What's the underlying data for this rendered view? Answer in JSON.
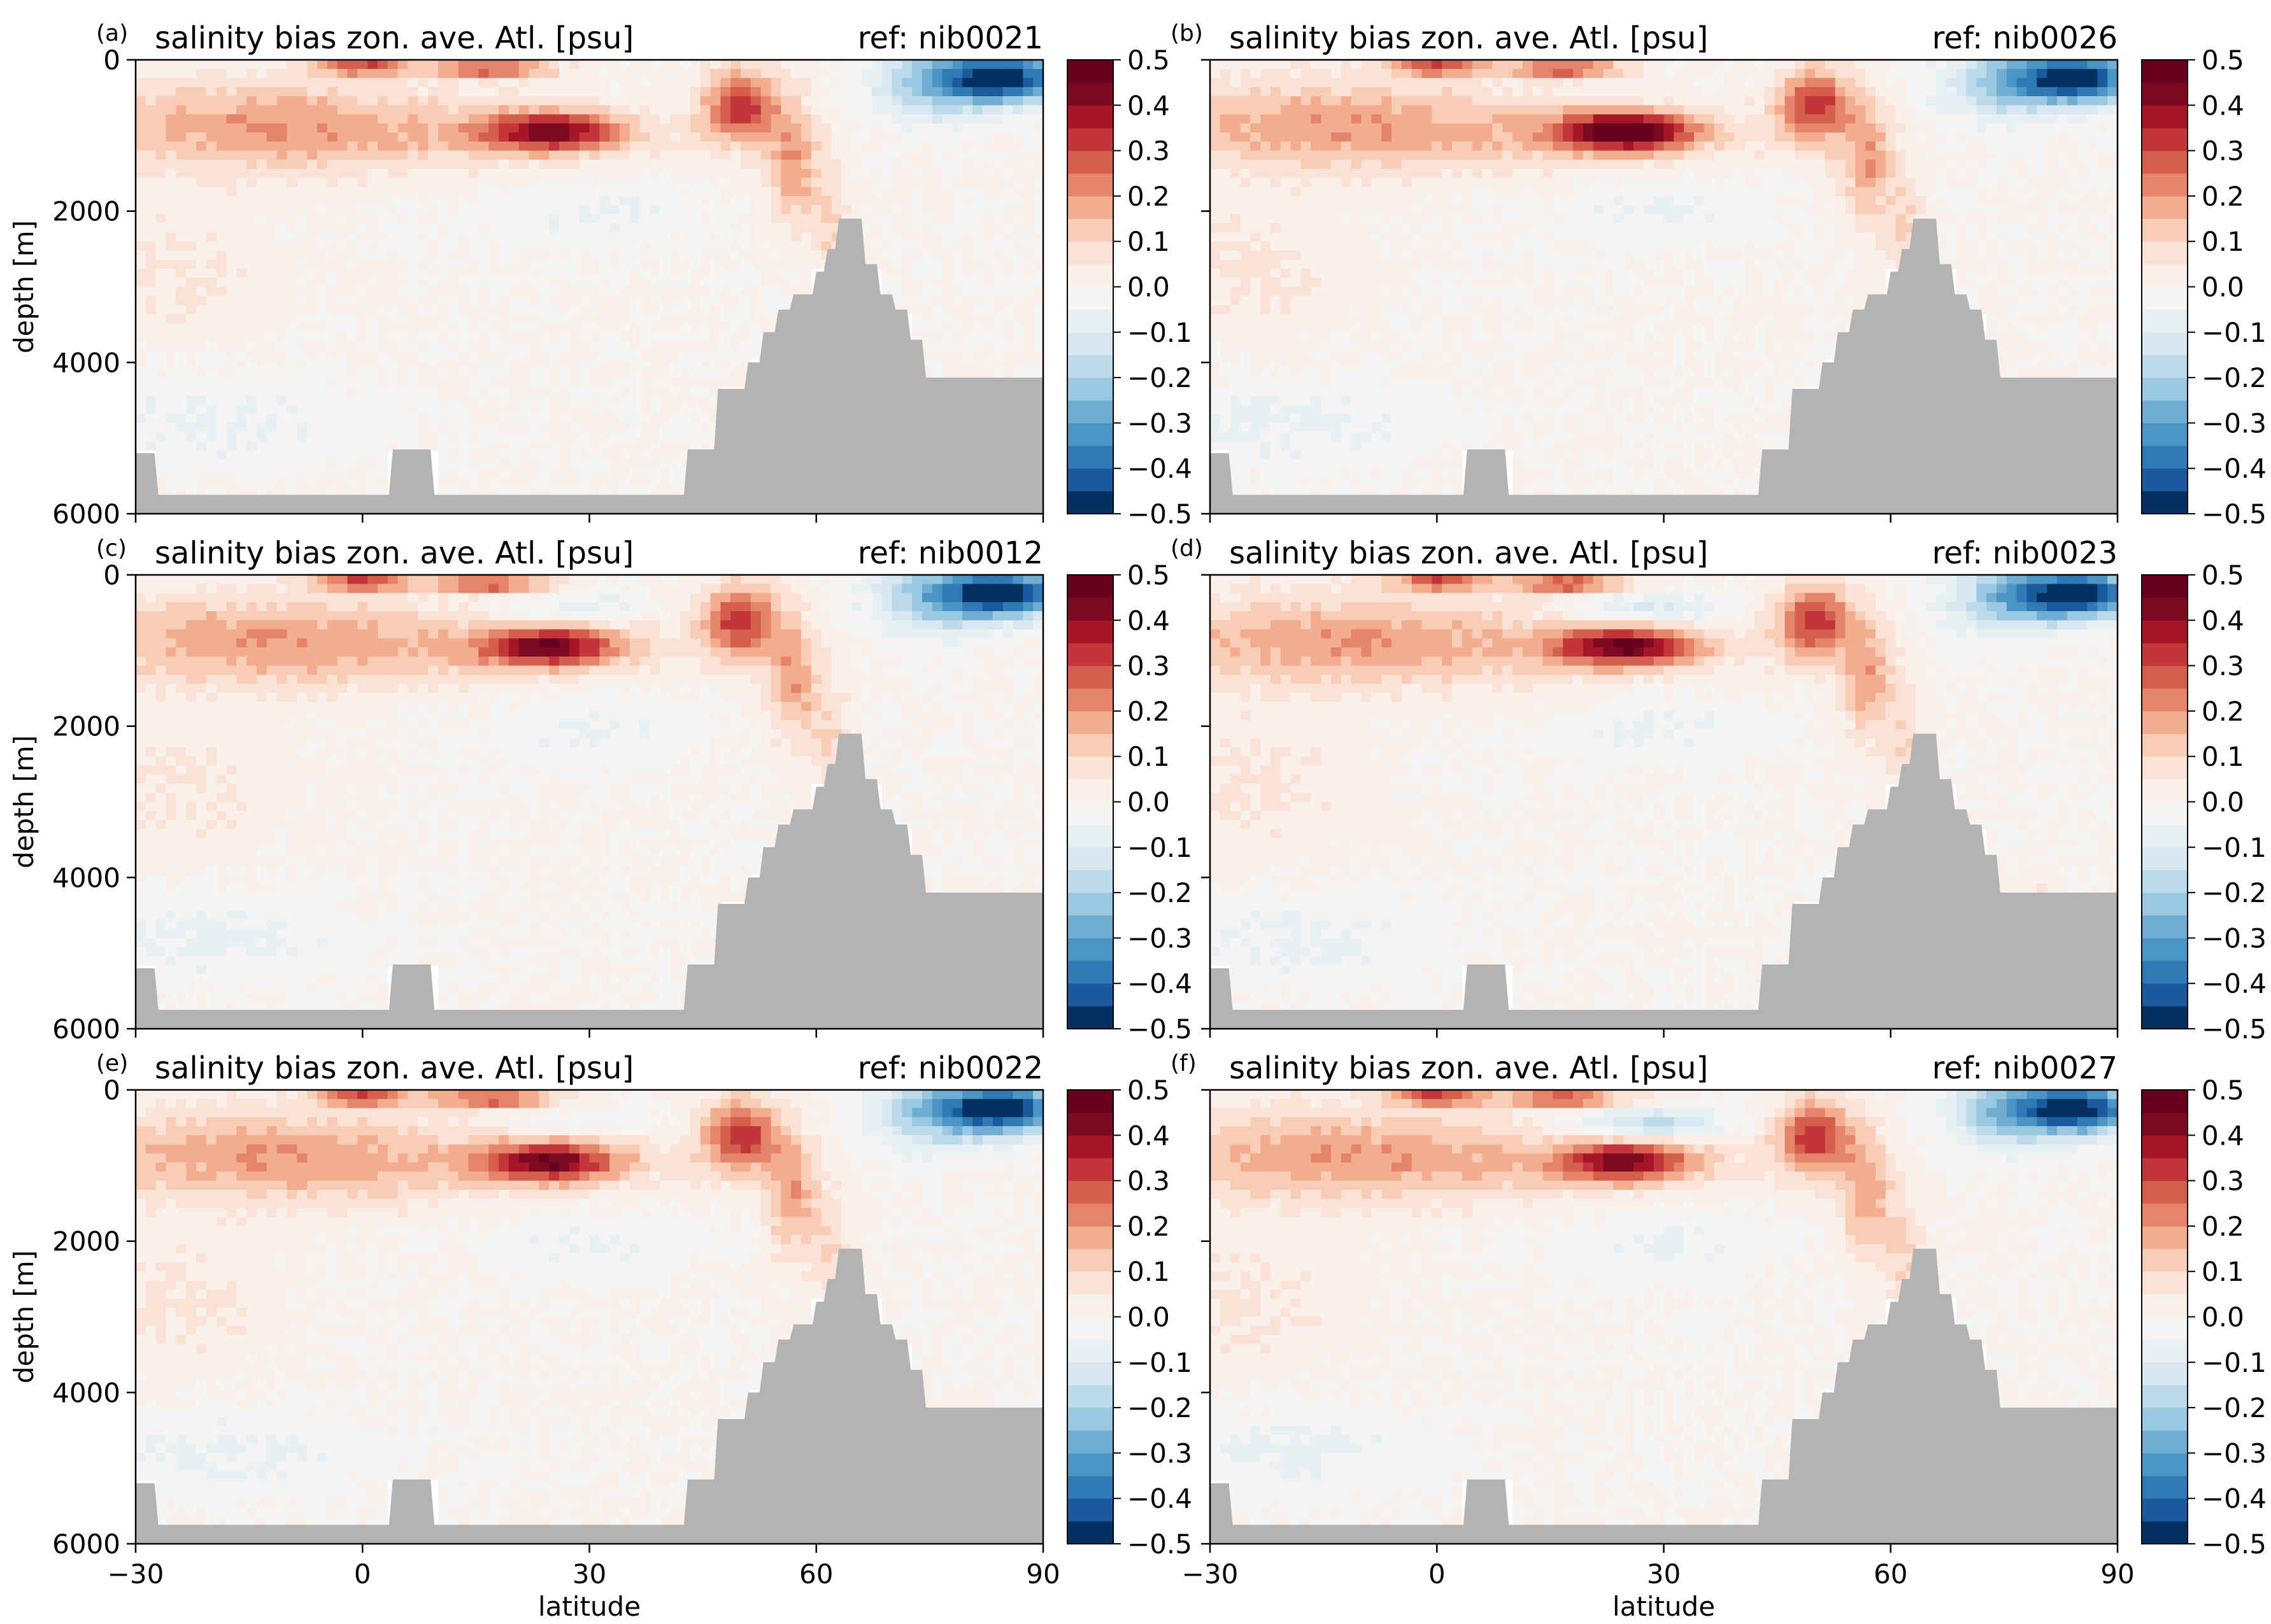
{
  "figure": {
    "panel_title": "salinity bias zon. ave. Atl. [psu]",
    "x_label": "latitude",
    "y_label": "depth [m]",
    "panels": [
      {
        "letter": "(a)",
        "ref": "ref: nib0021"
      },
      {
        "letter": "(b)",
        "ref": "ref: nib0026"
      },
      {
        "letter": "(c)",
        "ref": "ref: nib0012"
      },
      {
        "letter": "(d)",
        "ref": "ref: nib0023"
      },
      {
        "letter": "(e)",
        "ref": "ref: nib0022"
      },
      {
        "letter": "(f)",
        "ref": "ref: nib0027"
      }
    ],
    "x_ticks": [
      "−30",
      "0",
      "30",
      "60",
      "90"
    ],
    "y_ticks": [
      "0",
      "2000",
      "4000",
      "6000"
    ],
    "colorbar_ticks": [
      "0.5",
      "0.4",
      "0.3",
      "0.2",
      "0.1",
      "0.0",
      "−0.1",
      "−0.2",
      "−0.3",
      "−0.4",
      "−0.5"
    ]
  },
  "chart_data": {
    "type": "heatmap",
    "panel_count": 6,
    "layout": "3 rows x 2 columns",
    "xlim": [
      -30,
      90
    ],
    "ylim": [
      6000,
      0
    ],
    "x_ticks": [
      -30,
      0,
      30,
      60,
      90
    ],
    "y_ticks": [
      0,
      2000,
      4000,
      6000
    ],
    "colorbar": {
      "colormap": "RdBu_r",
      "range": [
        -0.5,
        0.5
      ],
      "levels": [
        -0.5,
        -0.45,
        -0.4,
        -0.35,
        -0.3,
        -0.25,
        -0.2,
        -0.15,
        -0.1,
        -0.05,
        0.0,
        0.05,
        0.1,
        0.15,
        0.2,
        0.25,
        0.3,
        0.35,
        0.4,
        0.45,
        0.5
      ],
      "colors": [
        "#053061",
        "#1a5a9d",
        "#2f79b5",
        "#4b95c5",
        "#71add2",
        "#99c8e0",
        "#bbdaea",
        "#d7e8f1",
        "#e8f0f4",
        "#f5f4f2",
        "#f9f0eb",
        "#fae3d6",
        "#f7cdb5",
        "#f3ad8e",
        "#e58469",
        "#d55e4d",
        "#c23539",
        "#a61628",
        "#7d0a22",
        "#67001f"
      ]
    },
    "land_color": "#b3b3b3",
    "panels": [
      {
        "label": "(a)",
        "reference": "nib0021"
      },
      {
        "label": "(b)",
        "reference": "nib0026"
      },
      {
        "label": "(c)",
        "reference": "nib0012"
      },
      {
        "label": "(d)",
        "reference": "nib0023"
      },
      {
        "label": "(e)",
        "reference": "nib0022"
      },
      {
        "label": "(f)",
        "reference": "nib0027"
      }
    ]
  }
}
